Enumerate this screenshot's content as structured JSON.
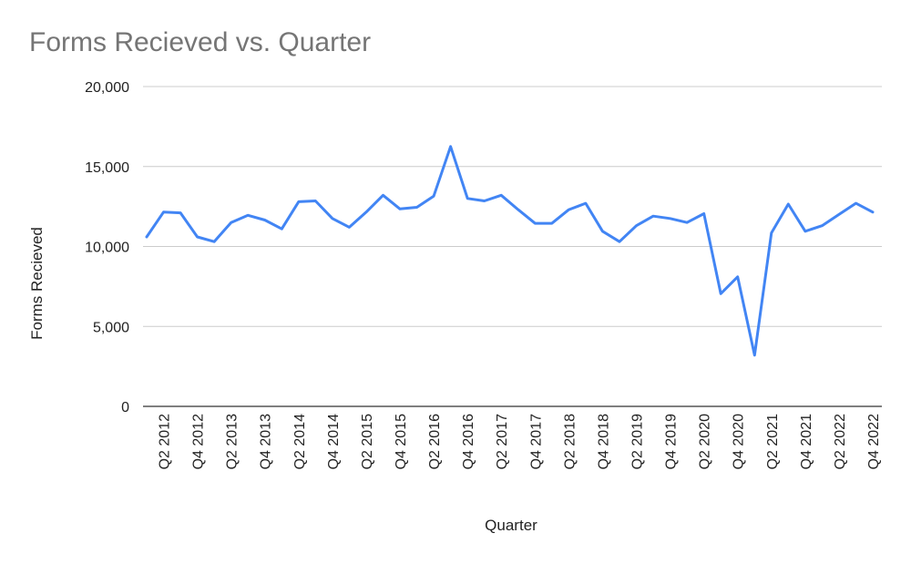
{
  "chart_data": {
    "type": "line",
    "title": "Forms Recieved  vs. Quarter",
    "xlabel": "Quarter",
    "ylabel": "Forms Recieved",
    "ylim": [
      0,
      20000
    ],
    "y_ticks": [
      "0",
      "5,000",
      "10,000",
      "15,000",
      "20,000"
    ],
    "grid": true,
    "legend": "none",
    "x": [
      "Q1 2012",
      "Q2 2012",
      "Q3 2012",
      "Q4 2012",
      "Q1 2013",
      "Q2 2013",
      "Q3 2013",
      "Q4 2013",
      "Q1 2014",
      "Q2 2014",
      "Q3 2014",
      "Q4 2014",
      "Q1 2015",
      "Q2 2015",
      "Q3 2015",
      "Q4 2015",
      "Q1 2016",
      "Q2 2016",
      "Q3 2016",
      "Q4 2016",
      "Q1 2017",
      "Q2 2017",
      "Q3 2017",
      "Q4 2017",
      "Q1 2018",
      "Q2 2018",
      "Q3 2018",
      "Q4 2018",
      "Q1 2019",
      "Q2 2019",
      "Q3 2019",
      "Q4 2019",
      "Q1 2020",
      "Q2 2020",
      "Q3 2020",
      "Q4 2020",
      "Q1 2021",
      "Q2 2021",
      "Q3 2021",
      "Q4 2021",
      "Q1 2022",
      "Q2 2022",
      "Q3 2022",
      "Q4 2022"
    ],
    "x_tick_labels": [
      "Q2 2012",
      "Q4 2012",
      "Q2 2013",
      "Q4 2013",
      "Q2 2014",
      "Q4 2014",
      "Q2 2015",
      "Q4 2015",
      "Q2 2016",
      "Q4 2016",
      "Q2 2017",
      "Q4 2017",
      "Q2 2018",
      "Q4 2018",
      "Q2 2019",
      "Q4 2019",
      "Q2 2020",
      "Q4 2020",
      "Q2 2021",
      "Q4 2021",
      "Q2 2022",
      "Q4 2022"
    ],
    "series": [
      {
        "color": "#4285f4",
        "values": [
          10600,
          12150,
          12100,
          10600,
          10300,
          11500,
          11950,
          11650,
          11100,
          12800,
          12850,
          11750,
          11200,
          12150,
          13200,
          12350,
          12450,
          13150,
          16250,
          13000,
          12850,
          13200,
          12300,
          11450,
          11450,
          12300,
          12700,
          10950,
          10300,
          11300,
          11900,
          11750,
          11500,
          12050,
          7050,
          8100,
          3200,
          10850,
          12650,
          10950,
          11300,
          12000,
          12700,
          12150
        ]
      }
    ]
  }
}
